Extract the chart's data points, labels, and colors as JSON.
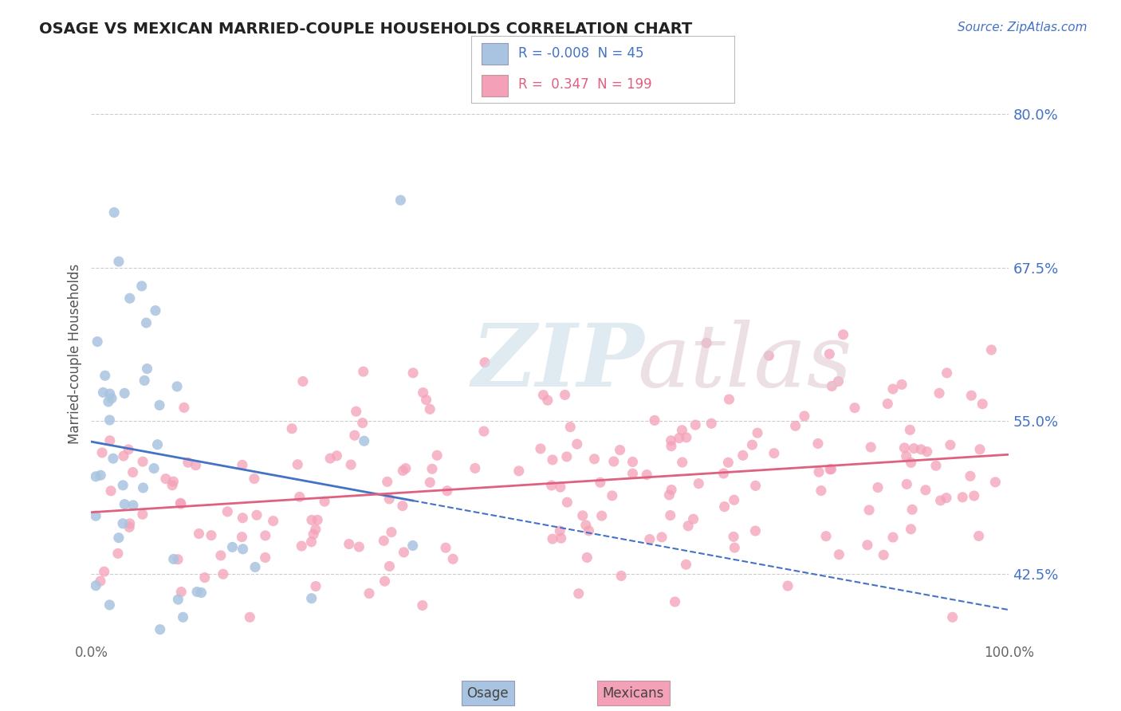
{
  "title": "OSAGE VS MEXICAN MARRIED-COUPLE HOUSEHOLDS CORRELATION CHART",
  "source_text": "Source: ZipAtlas.com",
  "ylabel": "Married-couple Households",
  "xlim": [
    0.0,
    100.0
  ],
  "ylim": [
    37.0,
    84.0
  ],
  "yticks": [
    42.5,
    55.0,
    67.5,
    80.0
  ],
  "xtick_labels": [
    "0.0%",
    "100.0%"
  ],
  "xtick_vals": [
    0.0,
    100.0
  ],
  "osage_color": "#a8c4e0",
  "mexican_color": "#f4a0b8",
  "osage_line_color": "#4472c4",
  "mexican_line_color": "#e06080",
  "legend_R_osage": "-0.008",
  "legend_N_osage": "45",
  "legend_R_mexican": "0.347",
  "legend_N_mexican": "199",
  "background_color": "#ffffff",
  "grid_color": "#cccccc",
  "yticklabel_color": "#4472c4",
  "title_color": "#222222",
  "source_color": "#4472c4"
}
